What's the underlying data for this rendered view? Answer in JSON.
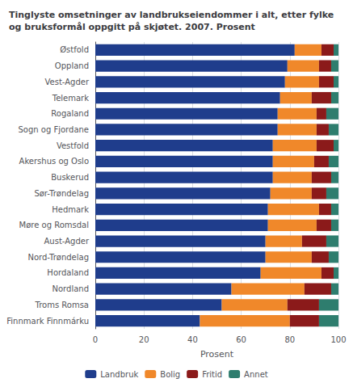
{
  "chart_data": {
    "type": "bar",
    "orientation": "horizontal",
    "stacked": true,
    "title": "Tinglyste omsetninger av landbrukseiendommer i alt, etter fylke\nog bruksformål oppgitt på skjøtet. 2007. Prosent",
    "categories": [
      "Finnmark Finnmárku",
      "Troms Romsa",
      "Nordland",
      "Hordaland",
      "Nord-Trøndelag",
      "Aust-Agder",
      "Møre og Romsdal",
      "Hedmark",
      "Sør-Trøndelag",
      "Buskerud",
      "Akershus og Oslo",
      "Vestfold",
      "Sogn og Fjordane",
      "Rogaland",
      "Telemark",
      "Vest-Agder",
      "Oppland",
      "Østfold"
    ],
    "series": [
      {
        "name": "Landbruk",
        "color": "#1f3d8c",
        "values": [
          43,
          52,
          56,
          68,
          70,
          70,
          71,
          71,
          72,
          73,
          73,
          73,
          75,
          75,
          76,
          78,
          79,
          82
        ]
      },
      {
        "name": "Bolig",
        "color": "#f0882a",
        "values": [
          37,
          27,
          30,
          25,
          19,
          15,
          20,
          21,
          17,
          16,
          17,
          18,
          16,
          16,
          13,
          14,
          13,
          11
        ]
      },
      {
        "name": "Fritid",
        "color": "#8b1a1a",
        "values": [
          12,
          13,
          11,
          5,
          7,
          10,
          6,
          5,
          6,
          8,
          6,
          7,
          5,
          4,
          8,
          6,
          5,
          5
        ]
      },
      {
        "name": "Annet",
        "color": "#2e7d6e",
        "values": [
          8,
          8,
          3,
          2,
          4,
          5,
          3,
          3,
          5,
          3,
          4,
          2,
          4,
          5,
          3,
          2,
          3,
          2
        ]
      }
    ],
    "xlabel": "Prosent",
    "xlim": [
      0,
      100
    ],
    "xticks": [
      0,
      20,
      40,
      60,
      80,
      100
    ],
    "grid": true,
    "legend": "bottom"
  }
}
